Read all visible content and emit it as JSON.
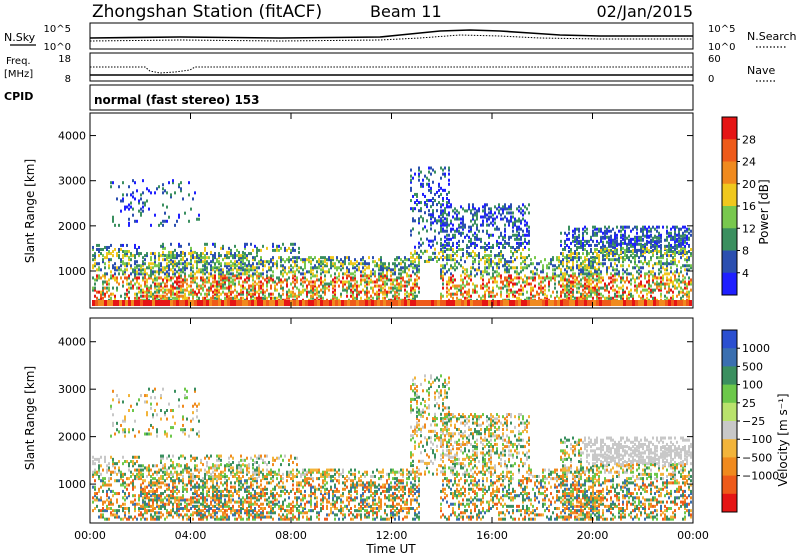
{
  "header": {
    "station": "Zhongshan Station (fitACF)",
    "beam": "Beam 11",
    "date": "02/Jan/2015"
  },
  "top_panels": {
    "nsky_label": "N.Sky",
    "nsky_ticks": [
      "10^5",
      "10^0"
    ],
    "nsearch_label": "N.Search",
    "nsearch_ticks": [
      "10^5",
      "10^0"
    ],
    "freq_label": "Freq.",
    "freq_unit": "[MHz]",
    "freq_ticks": [
      "18",
      "8"
    ],
    "nave_label": "Nave",
    "nave_ticks": [
      "60",
      "0"
    ],
    "cpid_label": "CPID",
    "cpid_text": "normal (fast stereo) 153"
  },
  "legend_colors": {
    "power": [
      "#1f1fff",
      "#2b4fb0",
      "#3a8f5f",
      "#78c84e",
      "#f0c81e",
      "#f08a1e",
      "#ee5a1a",
      "#e51515"
    ],
    "velocity": [
      "#e51515",
      "#ee5a1a",
      "#f08a1e",
      "#f2b43a",
      "#c8c8c8",
      "#b9e26c",
      "#6cc84a",
      "#3a8f5f",
      "#3a6fb0",
      "#2b4fd0"
    ]
  },
  "chart_data": [
    {
      "type": "heatmap",
      "panel": "power",
      "ylabel": "Slant Range [km]",
      "y_ticks": [
        "4000",
        "3000",
        "2000",
        "1000"
      ],
      "ylim": [
        180,
        4500
      ],
      "xlim": [
        "00:00",
        "24:00"
      ],
      "colorbar_label": "Power [dB]",
      "colorbar_ticks": [
        "28",
        "24",
        "20",
        "16",
        "12",
        "8",
        "4"
      ],
      "colorbar_range": [
        0,
        30
      ]
    },
    {
      "type": "heatmap",
      "panel": "velocity",
      "ylabel": "Slant Range [km]",
      "y_ticks": [
        "4000",
        "3000",
        "2000",
        "1000"
      ],
      "ylim": [
        180,
        4500
      ],
      "xlim": [
        "00:00",
        "24:00"
      ],
      "colorbar_label": "Velocity [m s⁻¹]",
      "colorbar_ticks": [
        "1000",
        "500",
        "100",
        "25",
        "−25",
        "−100",
        "−500",
        "−1000"
      ],
      "xlabel": "Time UT",
      "x_ticks": [
        "00:00",
        "04:00",
        "08:00",
        "12:00",
        "16:00",
        "20:00",
        "00:00"
      ]
    }
  ]
}
